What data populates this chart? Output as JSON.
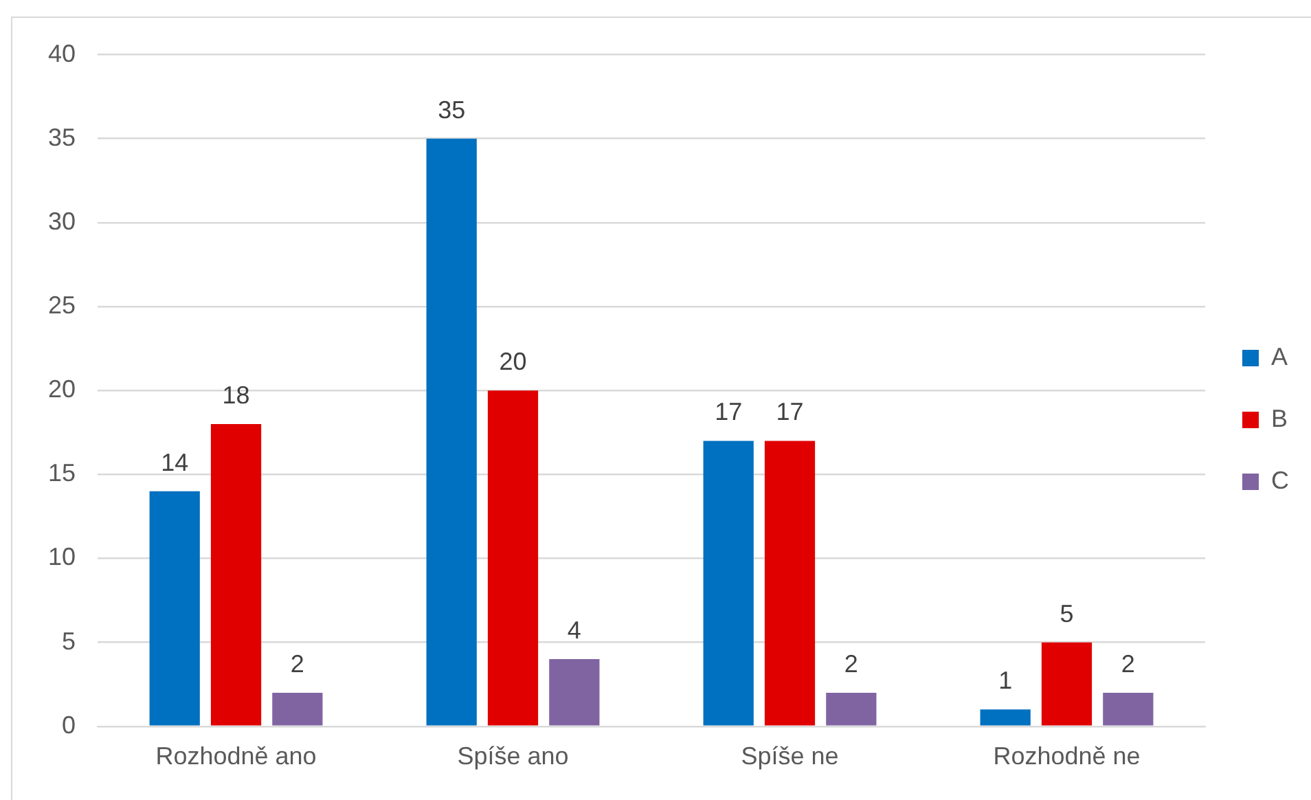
{
  "chart_data": {
    "type": "bar",
    "categories": [
      "Rozhodně ano",
      "Spíše ano",
      "Spíše ne",
      "Rozhodně ne"
    ],
    "series": [
      {
        "name": "A",
        "color": "#0070c0",
        "values": [
          14,
          35,
          17,
          1
        ]
      },
      {
        "name": "B",
        "color": "#e00000",
        "values": [
          18,
          20,
          17,
          5
        ]
      },
      {
        "name": "C",
        "color": "#8064a2",
        "values": [
          2,
          4,
          2,
          2
        ]
      }
    ],
    "ylim": [
      0,
      40
    ],
    "yticks": [
      0,
      5,
      10,
      15,
      20,
      25,
      30,
      35,
      40
    ],
    "grid": "y",
    "legend": "right",
    "data_labels": true
  }
}
